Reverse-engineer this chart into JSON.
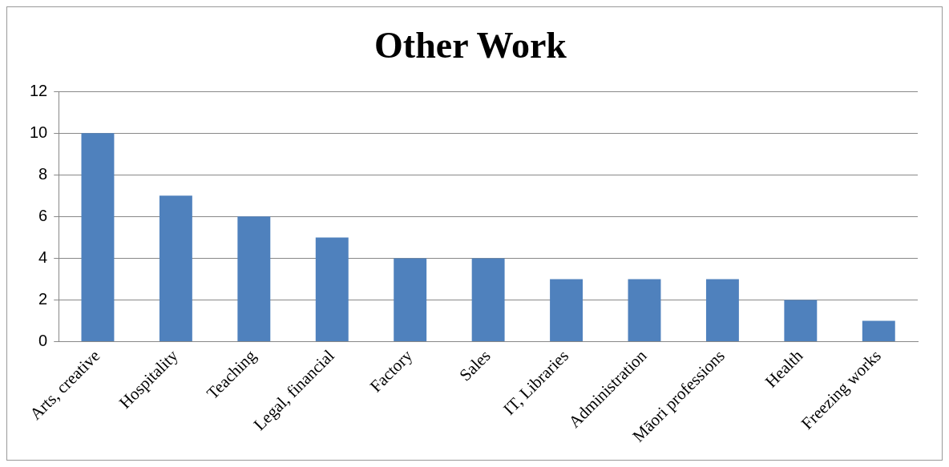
{
  "chart_data": {
    "type": "bar",
    "title": "Other Work",
    "categories": [
      "Arts, creative",
      "Hospitality",
      "Teaching",
      "Legal, financial",
      "Factory",
      "Sales",
      "IT, Libraries",
      "Administration",
      "Māori professions",
      "Health",
      "Freezing works"
    ],
    "values": [
      10,
      7,
      6,
      5,
      4,
      4,
      3,
      3,
      3,
      2,
      1
    ],
    "color": "#4f81bd",
    "ylim": [
      0,
      12
    ],
    "yticks": [
      0,
      2,
      4,
      6,
      8,
      10,
      12
    ],
    "grid": "y",
    "legend": false
  }
}
